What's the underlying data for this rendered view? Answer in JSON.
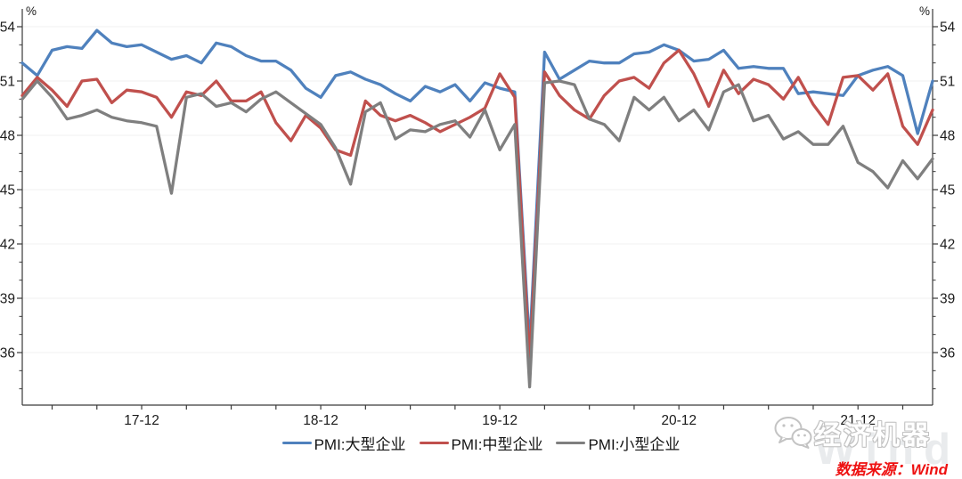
{
  "chart_data": {
    "type": "line",
    "title": "",
    "unit_label": "%",
    "grid": "horizontal-major",
    "legend_position": "bottom-center",
    "x": [
      "17-04",
      "17-05",
      "17-06",
      "17-07",
      "17-08",
      "17-09",
      "17-10",
      "17-11",
      "17-12",
      "18-01",
      "18-02",
      "18-03",
      "18-04",
      "18-05",
      "18-06",
      "18-07",
      "18-08",
      "18-09",
      "18-10",
      "18-11",
      "18-12",
      "19-01",
      "19-02",
      "19-03",
      "19-04",
      "19-05",
      "19-06",
      "19-07",
      "19-08",
      "19-09",
      "19-10",
      "19-11",
      "19-12",
      "20-01",
      "20-02",
      "20-03",
      "20-04",
      "20-05",
      "20-06",
      "20-07",
      "20-08",
      "20-09",
      "20-10",
      "20-11",
      "20-12",
      "21-01",
      "21-02",
      "21-03",
      "21-04",
      "21-05",
      "21-06",
      "21-07",
      "21-08",
      "21-09",
      "21-10",
      "21-11",
      "21-12",
      "22-01",
      "22-02",
      "22-03",
      "22-04",
      "22-05"
    ],
    "x_tick_labels": [
      "17-12",
      "18-12",
      "19-12",
      "20-12",
      "21-12"
    ],
    "x_tick_indices": [
      8,
      20,
      32,
      44,
      56
    ],
    "y_axis": {
      "majors": [
        36,
        39,
        42,
        45,
        48,
        51,
        54
      ],
      "minor_step": 1,
      "sides": "both"
    },
    "series": [
      {
        "name": "PMI:大型企业",
        "color": "#4f81bd",
        "values": [
          52.0,
          51.3,
          52.7,
          52.9,
          52.8,
          53.8,
          53.1,
          52.9,
          53.0,
          52.6,
          52.2,
          52.4,
          52.0,
          53.1,
          52.9,
          52.4,
          52.1,
          52.1,
          51.6,
          50.6,
          50.1,
          51.3,
          51.5,
          51.1,
          50.8,
          50.3,
          49.9,
          50.7,
          50.4,
          50.8,
          49.9,
          50.9,
          50.6,
          50.4,
          36.3,
          52.6,
          51.1,
          51.6,
          52.1,
          52.0,
          52.0,
          52.5,
          52.6,
          53.0,
          52.7,
          52.1,
          52.2,
          52.7,
          51.7,
          51.8,
          51.7,
          51.7,
          50.3,
          50.4,
          50.3,
          50.2,
          51.3,
          51.6,
          51.8,
          51.3,
          48.1,
          51.0
        ]
      },
      {
        "name": "PMI:中型企业",
        "color": "#c0504d",
        "values": [
          50.2,
          51.2,
          50.5,
          49.6,
          51.0,
          51.1,
          49.8,
          50.5,
          50.4,
          50.1,
          49.0,
          50.4,
          50.2,
          51.0,
          49.9,
          49.9,
          50.4,
          48.7,
          47.7,
          49.1,
          48.4,
          47.2,
          46.9,
          49.9,
          49.1,
          48.8,
          49.1,
          48.7,
          48.2,
          48.6,
          49.0,
          49.5,
          51.4,
          50.1,
          35.5,
          51.5,
          50.2,
          49.4,
          48.9,
          50.2,
          51.0,
          51.2,
          50.6,
          52.0,
          52.7,
          51.4,
          49.6,
          51.6,
          50.3,
          51.1,
          50.8,
          50.0,
          51.2,
          49.7,
          48.6,
          51.2,
          51.3,
          50.5,
          51.4,
          48.5,
          47.5,
          49.4
        ]
      },
      {
        "name": "PMI:小型企业",
        "color": "#7f7f7f",
        "values": [
          50.0,
          51.0,
          50.1,
          48.9,
          49.1,
          49.4,
          49.0,
          48.8,
          48.7,
          48.5,
          44.8,
          50.1,
          50.3,
          49.6,
          49.8,
          49.3,
          50.0,
          50.4,
          49.8,
          49.2,
          48.6,
          47.3,
          45.3,
          49.3,
          49.8,
          47.8,
          48.3,
          48.2,
          48.6,
          48.8,
          47.9,
          49.4,
          47.2,
          48.6,
          34.1,
          50.9,
          51.0,
          50.8,
          48.9,
          48.6,
          47.7,
          50.1,
          49.4,
          50.1,
          48.8,
          49.4,
          48.3,
          50.4,
          50.8,
          48.8,
          49.1,
          47.8,
          48.2,
          47.5,
          47.5,
          48.5,
          46.5,
          46.0,
          45.1,
          46.6,
          45.6,
          46.7
        ]
      }
    ]
  },
  "footer": {
    "source_text": "数据来源：Wind",
    "source_color": "#ee1111",
    "watermark_text": "经济机器",
    "watermark_brand": "Wind"
  }
}
